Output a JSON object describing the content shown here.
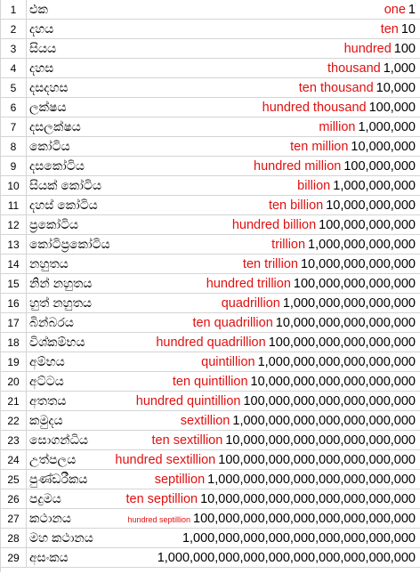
{
  "rows": [
    {
      "n": "1",
      "si": "එක",
      "en": "one",
      "num": "1"
    },
    {
      "n": "2",
      "si": "දහය",
      "en": "ten",
      "num": "10"
    },
    {
      "n": "3",
      "si": "සියය",
      "en": "hundred",
      "num": "100"
    },
    {
      "n": "4",
      "si": "දහස",
      "en": "thousand",
      "num": "1,000"
    },
    {
      "n": "5",
      "si": "දසදහස",
      "en": "ten thousand",
      "num": "10,000"
    },
    {
      "n": "6",
      "si": "ලක්ෂය",
      "en": "hundred thousand",
      "num": "100,000"
    },
    {
      "n": "7",
      "si": "දසලක්ෂය",
      "en": "million",
      "num": "1,000,000"
    },
    {
      "n": "8",
      "si": "කෝටිය",
      "en": "ten million",
      "num": "10,000,000"
    },
    {
      "n": "9",
      "si": "දසකෝටිය",
      "en": "hundred million",
      "num": "100,000,000"
    },
    {
      "n": "10",
      "si": "සියක් කෝටිය",
      "en": "billion",
      "num": "1,000,000,000"
    },
    {
      "n": "11",
      "si": "දහස් කෝටිය",
      "en": "ten billion",
      "num": "10,000,000,000"
    },
    {
      "n": "12",
      "si": "ප්‍රකෝටිය",
      "en": "hundred billion",
      "num": "100,000,000,000"
    },
    {
      "n": "13",
      "si": "කෝටිප්‍රකෝටිය",
      "en": "trillion",
      "num": "1,000,000,000,000"
    },
    {
      "n": "14",
      "si": "නහුතය",
      "en": "ten trillion",
      "num": "10,000,000,000,000"
    },
    {
      "n": "15",
      "si": "නින් නහුතය",
      "en": "hundred trillion",
      "num": "100,000,000,000,000"
    },
    {
      "n": "16",
      "si": "හුත් නහුතය",
      "en": "quadrillion",
      "num": "1,000,000,000,000,000"
    },
    {
      "n": "17",
      "si": "බින්බරය",
      "en": "ten quadrillion",
      "num": "10,000,000,000,000,000"
    },
    {
      "n": "18",
      "si": "විශ්කම්භය",
      "en": "hundred quadrillion",
      "num": "100,000,000,000,000,000"
    },
    {
      "n": "19",
      "si": "අම්භය",
      "en": "quintillion",
      "num": "1,000,000,000,000,000,000"
    },
    {
      "n": "20",
      "si": "අට්ටය",
      "en": "ten quintillion",
      "num": "10,000,000,000,000,000,000"
    },
    {
      "n": "21",
      "si": "අතතය",
      "en": "hundred quintillion",
      "num": "100,000,000,000,000,000,000"
    },
    {
      "n": "22",
      "si": "කමුදය",
      "en": "sextillion",
      "num": "1,000,000,000,000,000,000,000"
    },
    {
      "n": "23",
      "si": "සොගන්ධිය",
      "en": "ten sextillion",
      "num": "10,000,000,000,000,000,000,000"
    },
    {
      "n": "24",
      "si": "උත්පලය",
      "en": "hundred sextillion",
      "num": "100,000,000,000,000,000,000,000"
    },
    {
      "n": "25",
      "si": "පුණ්ඩරීකය",
      "en": "septillion",
      "num": "1,000,000,000,000,000,000,000,000"
    },
    {
      "n": "26",
      "si": "පදුමය",
      "en": "ten septillion",
      "num": "10,000,000,000,000,000,000,000,000"
    },
    {
      "n": "27",
      "si": "කථානය",
      "en": "hundred septillion",
      "num": "100,000,000,000,000,000,000,000,000"
    },
    {
      "n": "28",
      "si": "මහ කථානය",
      "en": "",
      "num": "1,000,000,000,000,000,000,000,000,000"
    },
    {
      "n": "29",
      "si": "අසංකය",
      "en": "",
      "num": "1,000,000,000,000,000,000,000,000,000,000"
    }
  ]
}
